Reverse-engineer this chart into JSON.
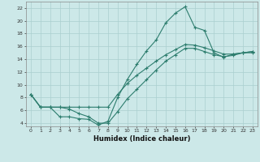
{
  "xlabel": "Humidex (Indice chaleur)",
  "bg_color": "#cce8e8",
  "grid_color": "#aacfcf",
  "line_color": "#2d7d6e",
  "xlim": [
    -0.5,
    23.5
  ],
  "ylim": [
    3.5,
    23.0
  ],
  "yticks": [
    4,
    6,
    8,
    10,
    12,
    14,
    16,
    18,
    20,
    22
  ],
  "xticks": [
    0,
    1,
    2,
    3,
    4,
    5,
    6,
    7,
    8,
    9,
    10,
    11,
    12,
    13,
    14,
    15,
    16,
    17,
    18,
    19,
    20,
    21,
    22,
    23
  ],
  "line1_x": [
    0,
    1,
    2,
    3,
    4,
    5,
    6,
    7,
    8,
    9,
    10,
    11,
    12,
    13,
    14,
    15,
    16,
    17,
    18,
    19,
    20,
    21,
    22,
    23
  ],
  "line1_y": [
    8.5,
    6.5,
    6.5,
    5.0,
    5.0,
    4.7,
    4.6,
    3.7,
    4.3,
    8.0,
    10.8,
    13.2,
    15.3,
    17.0,
    19.7,
    21.2,
    22.2,
    19.0,
    18.5,
    15.0,
    14.3,
    14.8,
    15.0,
    15.0
  ],
  "line2_x": [
    0,
    1,
    2,
    3,
    4,
    5,
    6,
    7,
    8,
    9,
    10,
    11,
    12,
    13,
    14,
    15,
    16,
    17,
    18,
    19,
    20,
    21,
    22,
    23
  ],
  "line2_y": [
    8.5,
    6.5,
    6.5,
    6.5,
    6.5,
    6.5,
    6.5,
    6.5,
    6.5,
    8.5,
    10.2,
    11.5,
    12.6,
    13.7,
    14.7,
    15.5,
    16.3,
    16.2,
    15.8,
    15.3,
    14.8,
    14.8,
    15.0,
    15.2
  ],
  "line3_x": [
    0,
    1,
    2,
    3,
    4,
    5,
    6,
    7,
    8,
    9,
    10,
    11,
    12,
    13,
    14,
    15,
    16,
    17,
    18,
    19,
    20,
    21,
    22,
    23
  ],
  "line3_y": [
    8.5,
    6.5,
    6.5,
    6.5,
    6.2,
    5.5,
    5.0,
    4.0,
    4.0,
    5.8,
    7.8,
    9.3,
    10.8,
    12.3,
    13.7,
    14.7,
    15.7,
    15.7,
    15.2,
    14.7,
    14.4,
    14.6,
    15.0,
    15.2
  ]
}
